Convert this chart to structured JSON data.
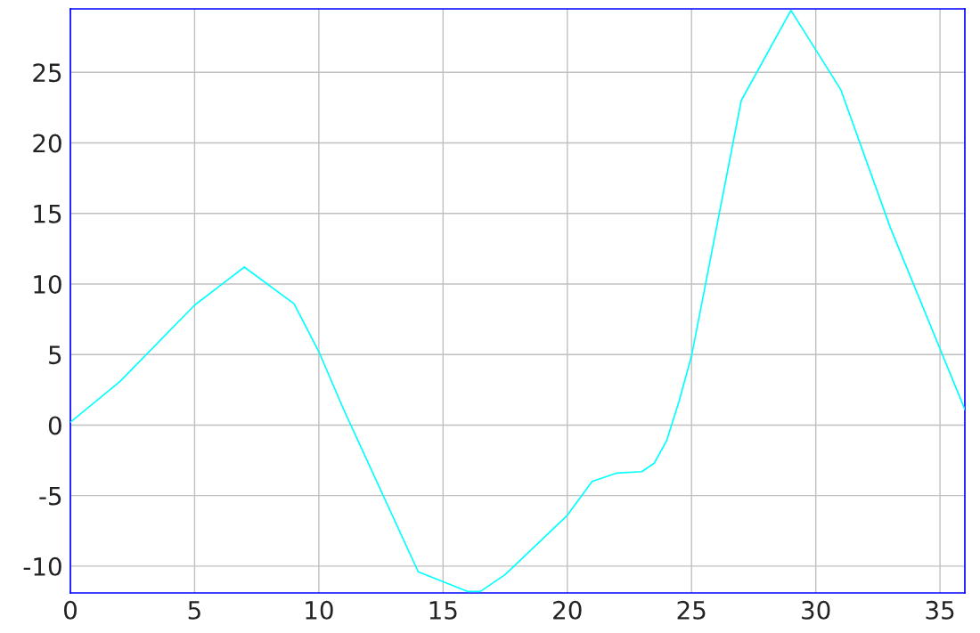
{
  "chart_data": {
    "type": "line",
    "x": [
      0,
      2,
      5,
      7,
      9,
      10,
      11,
      14,
      16,
      16.5,
      17.5,
      20,
      21,
      22,
      23,
      23.5,
      24,
      24.5,
      25,
      27,
      29,
      31,
      33,
      36
    ],
    "series": [
      {
        "color": "#00ffff",
        "values": [
          0.2,
          3.1,
          8.5,
          11.2,
          8.6,
          5.2,
          1.1,
          -10.4,
          -11.8,
          -11.8,
          -10.6,
          -6.4,
          -4.0,
          -3.4,
          -3.3,
          -2.7,
          -1.1,
          1.7,
          4.9,
          23.0,
          29.4,
          23.8,
          14.0,
          1.1
        ]
      }
    ],
    "xlim": [
      0,
      36
    ],
    "ylim": [
      -11.9,
      29.5
    ],
    "xticks": [
      0,
      5,
      10,
      15,
      20,
      25,
      30,
      35
    ],
    "yticks": [
      -10,
      -5,
      0,
      5,
      10,
      15,
      20,
      25
    ],
    "grid": true
  }
}
